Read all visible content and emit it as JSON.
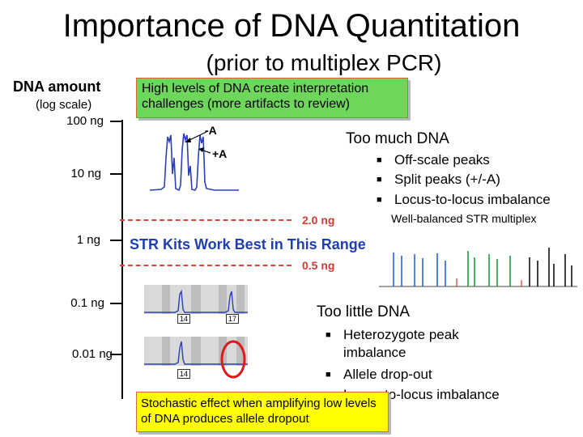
{
  "title": "Importance of DNA Quantitation",
  "subtitle": "(prior to multiplex PCR)",
  "axis": {
    "title": "DNA amount",
    "scale": "(log scale)",
    "ticks": [
      "100 ng",
      "10 ng",
      "1 ng",
      "0.1 ng",
      "0.01 ng"
    ]
  },
  "callout_high": "High levels of DNA create interpretation challenges (more artifacts to review)",
  "peak_labels": {
    "minus_a": "-A",
    "plus_a": "+A"
  },
  "too_much": {
    "heading": "Too much DNA",
    "bullets": [
      "Off-scale peaks",
      "Split peaks (+/-A)",
      "Locus-to-locus imbalance"
    ]
  },
  "range": {
    "upper": "2.0 ng",
    "lower": "0.5 ng",
    "text": "STR Kits Work Best in This Range"
  },
  "balanced_label": "Well-balanced STR multiplex",
  "low_peaks": {
    "top_alleles": [
      "14",
      "17"
    ],
    "bottom_alleles": [
      "14"
    ]
  },
  "too_little": {
    "heading": "Too little DNA",
    "bullets": [
      "Heterozygote peak imbalance",
      "Allele drop-out",
      "Locus-to-locus imbalance"
    ]
  },
  "callout_low": "Stochastic effect when amplifying low levels of DNA produces allele dropout",
  "colors": {
    "callout_green": "#6fd65c",
    "callout_yellow": "#ffff00",
    "range_red": "#d33a30",
    "range_blue": "#1f3fb0",
    "trace_blue": "#2b3fb8",
    "dropout_circle": "#e01818"
  }
}
